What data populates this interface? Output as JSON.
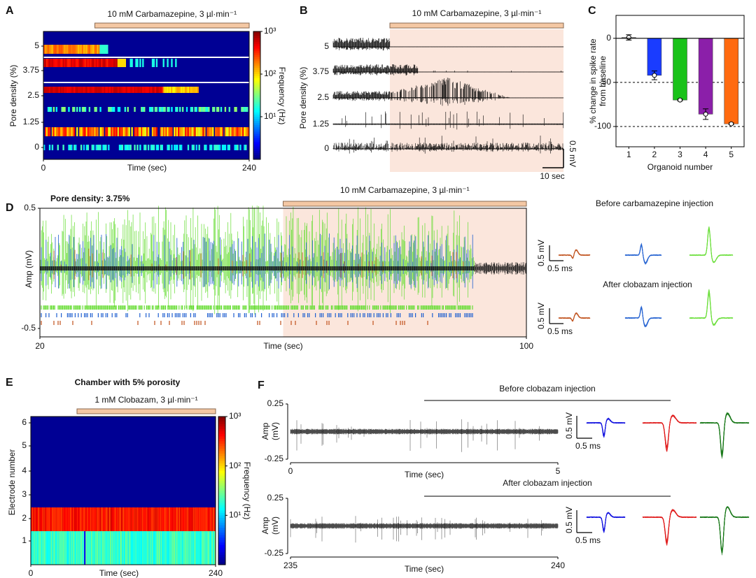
{
  "chart_data": [
    {
      "type": "heatmap",
      "panel": "A",
      "annotation": "10 mM Carbamazepine, 3 µl·min⁻¹",
      "injection_start": 60,
      "ylabel": "Pore density (%)",
      "categories": [
        "0",
        "1.25",
        "2.5",
        "3.75",
        "5"
      ],
      "xlabel": "Time (sec)",
      "xlim": [
        0,
        240
      ],
      "xticks": [
        0,
        240
      ],
      "colorbar_label": "Frequency (Hz)",
      "clim": [
        1,
        1000
      ],
      "log_scale": true,
      "cticks": [
        {
          "value": 10,
          "label": "10¹"
        },
        {
          "value": 100,
          "label": "10²"
        },
        {
          "value": 1000,
          "label": "10³"
        }
      ]
    },
    {
      "type": "traces",
      "panel": "B",
      "annotation": "10 mM Carbamazepine, 3 µl·min⁻¹",
      "ylabel": "Pore density (%)",
      "categories": [
        "0",
        "1.25",
        "2.5",
        "3.75",
        "5"
      ],
      "scale_bar": {
        "y": "0.5 mV",
        "x": "10 sec"
      },
      "color": "#000000",
      "shade_color": "#fbe6dc"
    },
    {
      "type": "bar",
      "panel": "C",
      "categories": [
        "1",
        "2",
        "3",
        "4",
        "5"
      ],
      "values": [
        1,
        -42,
        -70,
        -86,
        -97
      ],
      "errors": [
        3,
        5,
        1,
        6,
        1
      ],
      "colors": [
        "#a0a0a0",
        "#1a3cff",
        "#19c219",
        "#8b1fa9",
        "#ff6a10"
      ],
      "ylim": [
        -123,
        26
      ],
      "yticks": [
        0,
        -50,
        -100
      ],
      "reference_lines": [
        -50,
        -100
      ],
      "ylabel": [
        "% change in spike rate",
        "from baseline"
      ],
      "xlabel": "Organoid number"
    },
    {
      "type": "trace",
      "panel": "D",
      "title": "Pore density: 3.75%",
      "annotation": "10 mM Carbamazepine, 3 µl·min⁻¹",
      "injection_start": 60,
      "xlim": [
        20,
        100
      ],
      "xticks": [
        20,
        100
      ],
      "ylim": [
        -0.57,
        0.5
      ],
      "yticks": [
        0.5,
        -0.5
      ],
      "ylabel": "Amp (mV)",
      "xlabel": "Time (sec)",
      "series_colors": [
        "#c0501a",
        "#1f5fd0",
        "#66dd33"
      ],
      "shade_color": "#fbe6dc",
      "waveforms": [
        {
          "title": "Before carbamazepine injection"
        },
        {
          "title": "After clobazam injection"
        }
      ],
      "scale_bar": {
        "y": "0.5 mV",
        "x": "0.5 ms"
      }
    },
    {
      "type": "heatmap",
      "panel": "E",
      "title": "Chamber with 5% porosity",
      "annotation": "1 mM Clobazam, 3 µl·min⁻¹",
      "injection_start": 60,
      "ylabel": "Electrode number",
      "categories": [
        "1",
        "2",
        "3",
        "4",
        "5",
        "6"
      ],
      "xlabel": "Time (sec)",
      "xlim": [
        0,
        240
      ],
      "xticks": [
        0,
        240
      ],
      "colorbar_label": "Frequency (Hz)",
      "clim": [
        1,
        1000
      ],
      "log_scale": true,
      "cticks": [
        {
          "value": 10,
          "label": "10¹"
        },
        {
          "value": 100,
          "label": "10²"
        },
        {
          "value": 1000,
          "label": "10³"
        }
      ]
    },
    {
      "type": "trace-pair",
      "panel": "F",
      "colors": [
        "#1010e0",
        "#e01818",
        "#127512"
      ],
      "scale_bar": {
        "y": "0.5 mV",
        "x": "0.5 ms"
      },
      "subplots": [
        {
          "annotation": "Before clobazam injection",
          "xlim": [
            0,
            5
          ],
          "xticks": [
            0,
            5
          ],
          "ylim": [
            -0.25,
            0.25
          ],
          "yticks": [
            0.25,
            -0.25
          ],
          "ylabel": [
            "Amp",
            "(mV)"
          ],
          "xlabel": "Time (sec)"
        },
        {
          "annotation": "After clobazam injection",
          "xlim": [
            235,
            240
          ],
          "xticks": [
            235,
            240
          ],
          "ylim": [
            -0.25,
            0.25
          ],
          "yticks": [
            0.25,
            -0.25
          ],
          "ylabel": [
            "Amp",
            "(mV)"
          ],
          "xlabel": "Time (sec)"
        }
      ]
    }
  ]
}
